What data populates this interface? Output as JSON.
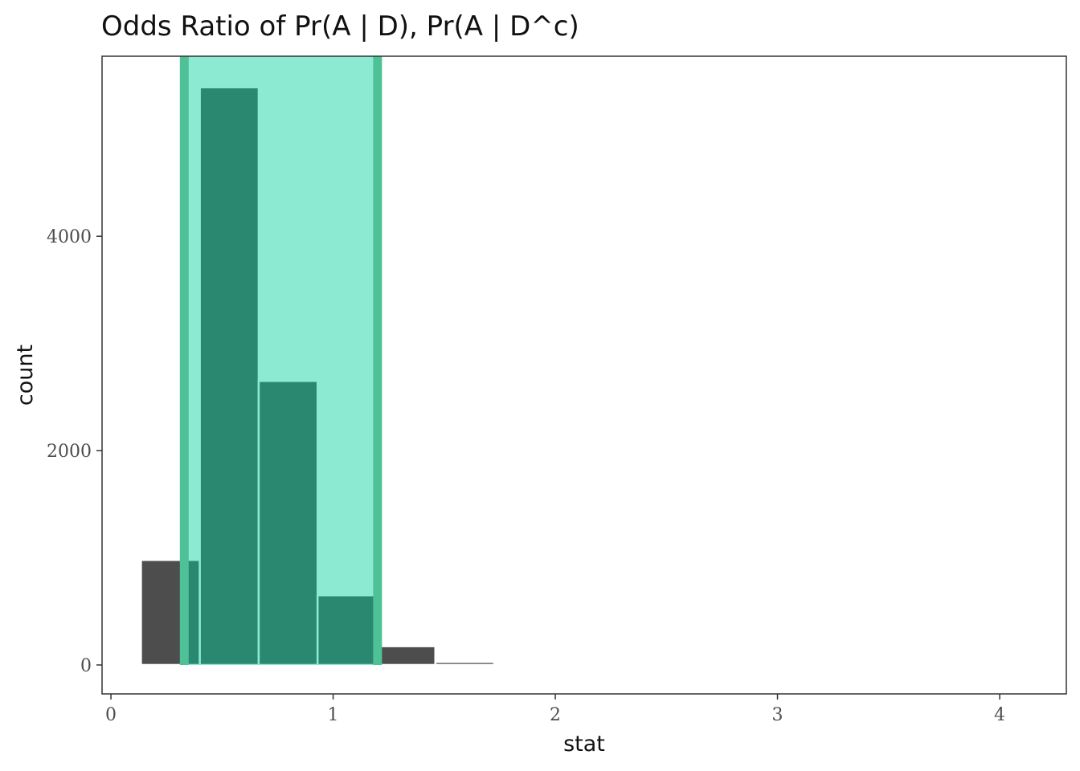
{
  "chart_data": {
    "type": "bar",
    "title": "Odds Ratio of Pr(A | D), Pr(A | D^c)",
    "xlabel": "stat",
    "ylabel": "count",
    "xlim": [
      -0.04,
      4.3
    ],
    "ylim": [
      -270,
      5680
    ],
    "x_ticks": [
      0,
      1,
      2,
      3,
      4
    ],
    "x_tick_labels": [
      "0",
      "1",
      "2",
      "3",
      "4"
    ],
    "y_ticks": [
      0,
      2000,
      4000
    ],
    "y_tick_labels": [
      "0",
      "2000",
      "4000"
    ],
    "bin_width": 0.265,
    "bins": [
      {
        "x_start": 0.135,
        "x_end": 0.4,
        "count": 980
      },
      {
        "x_start": 0.4,
        "x_end": 0.665,
        "count": 5390
      },
      {
        "x_start": 0.665,
        "x_end": 0.93,
        "count": 2650
      },
      {
        "x_start": 0.93,
        "x_end": 1.195,
        "count": 650
      },
      {
        "x_start": 1.195,
        "x_end": 1.46,
        "count": 175
      },
      {
        "x_start": 1.46,
        "x_end": 1.725,
        "count": 28
      }
    ],
    "interval": {
      "lower": 0.33,
      "upper": 1.2
    },
    "grid": false,
    "legend": "none",
    "colors": {
      "bar_fill": "#4d4d4d",
      "bar_outline": "#ffffff",
      "interval_fill": "#00d09b",
      "interval_fill_opacity": 0.45,
      "interval_edge": "#4fc197",
      "panel_border": "#333333",
      "tick_color": "#333333"
    }
  }
}
